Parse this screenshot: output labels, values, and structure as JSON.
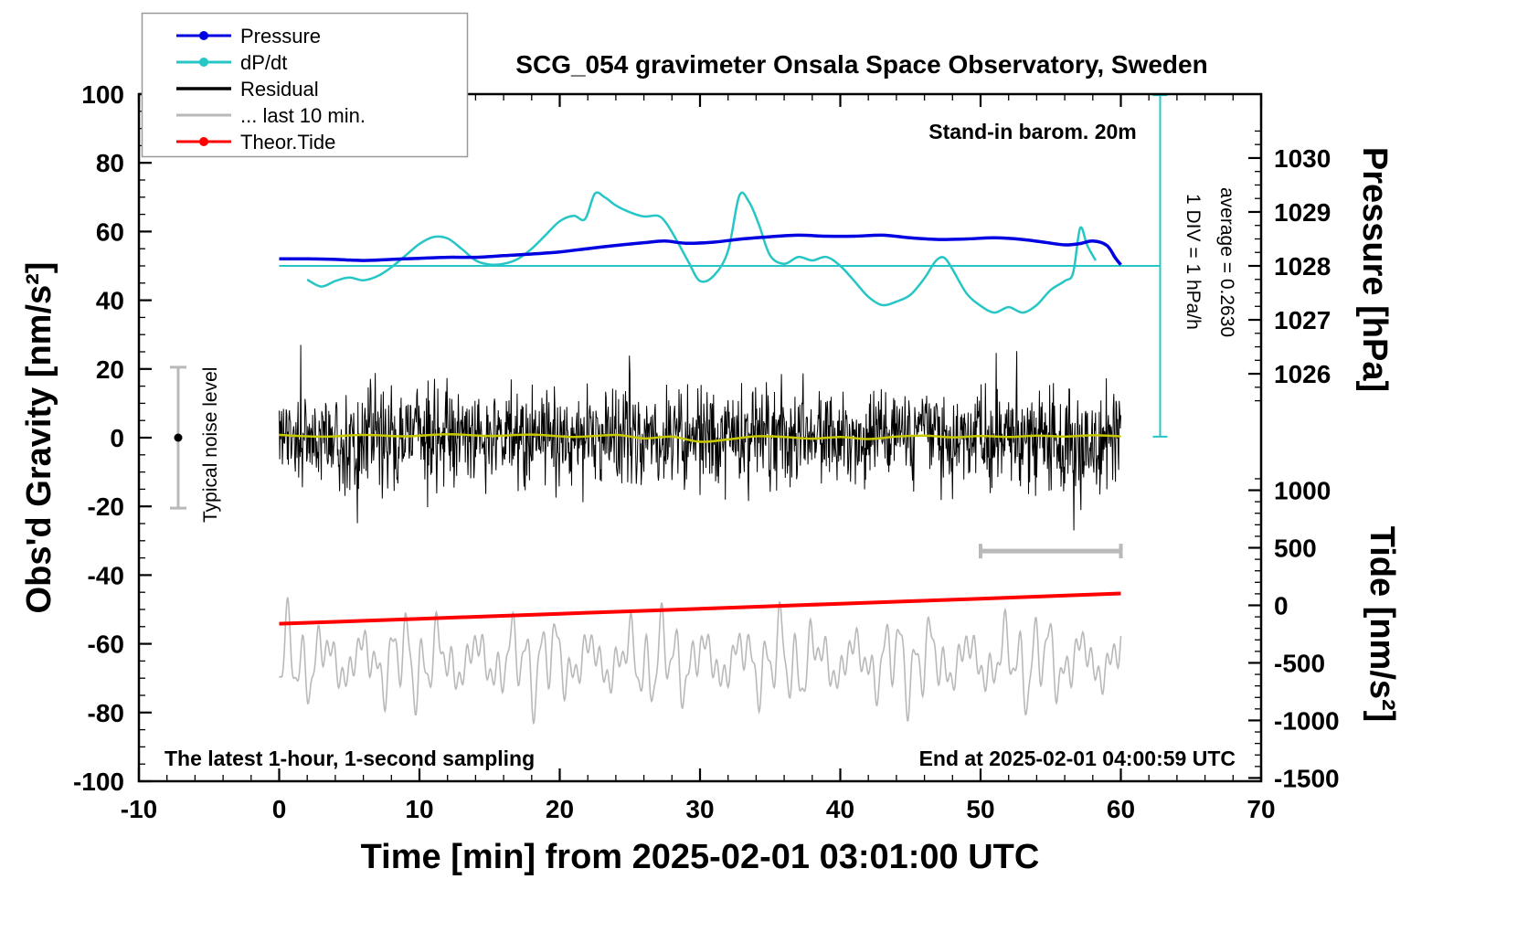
{
  "chart_data": {
    "type": "line",
    "title": "SCG_054 gravimeter Onsala Space Observatory, Sweden",
    "annotations": {
      "barometer": "Stand-in barom. 20m",
      "div_scale": "1 DIV = 1 hPa/h",
      "average": "average = 0.2630",
      "noise_level": "Typical noise level",
      "sampling": "The latest 1-hour, 1-second sampling",
      "end_time": "End at 2025-02-01 04:00:59 UTC"
    },
    "x_axis": {
      "label": "Time [min] from 2025-02-01 03:01:00 UTC",
      "min": -10,
      "max": 70,
      "major_ticks": [
        -10,
        0,
        10,
        20,
        30,
        40,
        50,
        60,
        70
      ],
      "minor_step": 2
    },
    "y_left": {
      "label": "Obs'd Gravity [nm/s²]",
      "min": -100,
      "max": 100,
      "major_ticks": [
        -100,
        -80,
        -60,
        -40,
        -20,
        0,
        20,
        40,
        60,
        80,
        100
      ],
      "minor_step": 5
    },
    "y_right_pressure": {
      "label": "Pressure [hPa]",
      "major_ticks": [
        1030,
        1029,
        1028,
        1027,
        1026
      ],
      "minor_step": 0.25,
      "tick_range_hpa": [
        1025.5,
        1030.5
      ],
      "ref_hpa": 1028,
      "gravity_at_ref": 50,
      "gravity_per_hpa": 15.7
    },
    "y_right_tide": {
      "label": "Tide [nm/s²]",
      "major_ticks": [
        1000,
        500,
        0,
        -500,
        -1000,
        -1500
      ],
      "minor_step": 100,
      "tick_range": [
        -1500,
        1100
      ],
      "gravity_at_zero": -48.8,
      "gravity_per_unit": 0.0335
    },
    "legend": {
      "items": [
        {
          "label": "Pressure",
          "color": "#0000e0",
          "marker": "dot"
        },
        {
          "label": "dP/dt",
          "color": "#26c6c6",
          "marker": "dot"
        },
        {
          "label": "Residual",
          "color": "#000000",
          "marker": "line"
        },
        {
          "label": "... last 10 min.",
          "color": "#b9b9b9",
          "marker": "line"
        },
        {
          "label": "Theor.Tide",
          "color": "#ff0000",
          "marker": "dot"
        }
      ]
    },
    "series": {
      "pressure": {
        "name": "Pressure",
        "unit": "hPa",
        "color": "#0000e0",
        "points": [
          [
            0,
            1028.13
          ],
          [
            2,
            1028.13
          ],
          [
            4,
            1028.12
          ],
          [
            6,
            1028.1
          ],
          [
            8,
            1028.12
          ],
          [
            10,
            1028.14
          ],
          [
            12,
            1028.16
          ],
          [
            14,
            1028.16
          ],
          [
            16,
            1028.19
          ],
          [
            18,
            1028.22
          ],
          [
            20,
            1028.26
          ],
          [
            22,
            1028.32
          ],
          [
            24,
            1028.38
          ],
          [
            26,
            1028.43
          ],
          [
            27.5,
            1028.46
          ],
          [
            29,
            1028.42
          ],
          [
            31,
            1028.44
          ],
          [
            33,
            1028.5
          ],
          [
            35,
            1028.54
          ],
          [
            37,
            1028.57
          ],
          [
            39,
            1028.55
          ],
          [
            41,
            1028.55
          ],
          [
            43,
            1028.57
          ],
          [
            45,
            1028.52
          ],
          [
            47,
            1028.49
          ],
          [
            49,
            1028.5
          ],
          [
            51,
            1028.52
          ],
          [
            53,
            1028.49
          ],
          [
            54.5,
            1028.44
          ],
          [
            56,
            1028.39
          ],
          [
            57,
            1028.41
          ],
          [
            58,
            1028.46
          ],
          [
            59,
            1028.38
          ],
          [
            59.6,
            1028.15
          ],
          [
            60,
            1028.02
          ]
        ]
      },
      "dpdt": {
        "name": "dP/dt",
        "unit": "hPa/h",
        "color": "#26c6c6",
        "zero_gravity": 50,
        "gravity_per_unit": 20,
        "mean": 0.263,
        "points": [
          [
            2,
            -0.2
          ],
          [
            3,
            -0.3
          ],
          [
            4,
            -0.22
          ],
          [
            5,
            -0.17
          ],
          [
            6,
            -0.21
          ],
          [
            7,
            -0.15
          ],
          [
            8,
            -0.02
          ],
          [
            9,
            0.15
          ],
          [
            10,
            0.32
          ],
          [
            11,
            0.42
          ],
          [
            12,
            0.4
          ],
          [
            13,
            0.25
          ],
          [
            14,
            0.08
          ],
          [
            15,
            0.02
          ],
          [
            16,
            0.03
          ],
          [
            17,
            0.1
          ],
          [
            18,
            0.25
          ],
          [
            19,
            0.45
          ],
          [
            20,
            0.65
          ],
          [
            21,
            0.73
          ],
          [
            21.8,
            0.68
          ],
          [
            22.5,
            1.05
          ],
          [
            23.2,
            1.0
          ],
          [
            24,
            0.88
          ],
          [
            25,
            0.78
          ],
          [
            26,
            0.72
          ],
          [
            27,
            0.73
          ],
          [
            27.6,
            0.62
          ],
          [
            28.4,
            0.35
          ],
          [
            29.2,
            0.05
          ],
          [
            30,
            -0.22
          ],
          [
            31,
            -0.14
          ],
          [
            32,
            0.22
          ],
          [
            32.8,
            1.02
          ],
          [
            33.5,
            0.93
          ],
          [
            34.2,
            0.6
          ],
          [
            35,
            0.15
          ],
          [
            36,
            0.03
          ],
          [
            37,
            0.13
          ],
          [
            38,
            0.08
          ],
          [
            39,
            0.13
          ],
          [
            40,
            0.0
          ],
          [
            41,
            -0.22
          ],
          [
            42,
            -0.45
          ],
          [
            43,
            -0.57
          ],
          [
            44,
            -0.52
          ],
          [
            45,
            -0.42
          ],
          [
            46,
            -0.18
          ],
          [
            46.8,
            0.07
          ],
          [
            47.4,
            0.12
          ],
          [
            48,
            -0.05
          ],
          [
            49,
            -0.4
          ],
          [
            50,
            -0.58
          ],
          [
            51,
            -0.68
          ],
          [
            52,
            -0.6
          ],
          [
            53,
            -0.68
          ],
          [
            54,
            -0.57
          ],
          [
            55,
            -0.35
          ],
          [
            56,
            -0.22
          ],
          [
            56.6,
            -0.1
          ],
          [
            57.1,
            0.55
          ],
          [
            57.6,
            0.3
          ],
          [
            58.2,
            0.08
          ]
        ]
      },
      "residual": {
        "name": "Residual",
        "unit": "nm/s²",
        "color": "#000000",
        "noise": {
          "x_min": 0,
          "x_max": 60,
          "points_per_min": 26,
          "sigma": 7,
          "spike_prob": 0.04,
          "spike_scale": 1.9,
          "clamp": 27,
          "seed": 1234
        }
      },
      "residual_mean": {
        "name": "Residual smoothed",
        "unit": "nm/s²",
        "color": "#c8c800",
        "points": [
          [
            0,
            0.8
          ],
          [
            3,
            0.3
          ],
          [
            6,
            0.8
          ],
          [
            9,
            0.4
          ],
          [
            12,
            1.0
          ],
          [
            15,
            0.5
          ],
          [
            18,
            0.9
          ],
          [
            21,
            0.2
          ],
          [
            24,
            0.8
          ],
          [
            26,
            -0.2
          ],
          [
            28,
            0.3
          ],
          [
            30,
            -1.2
          ],
          [
            32,
            -0.5
          ],
          [
            34,
            0.4
          ],
          [
            36,
            0.2
          ],
          [
            38,
            -0.3
          ],
          [
            40,
            0.2
          ],
          [
            42,
            -0.4
          ],
          [
            44,
            0.3
          ],
          [
            46,
            0.6
          ],
          [
            48,
            0.1
          ],
          [
            50,
            0.5
          ],
          [
            52,
            0.2
          ],
          [
            54,
            0.6
          ],
          [
            56,
            0.3
          ],
          [
            58,
            0.7
          ],
          [
            60,
            0.4
          ]
        ]
      },
      "last10": {
        "name": "... last 10 min.",
        "unit": "nm/s²",
        "color": "#b9b9b9",
        "osc": {
          "x_min": 0,
          "x_max": 60,
          "points_per_min": 24,
          "base": -65,
          "a1": 10,
          "f1": 5.9,
          "a2": 5,
          "f2": 2.33,
          "a3": 3.5,
          "f3": 11.3,
          "env_amp": 0.45,
          "env_f": 0.71,
          "clamp_min": -86,
          "clamp_max": -42,
          "seed": 777
        }
      },
      "tide": {
        "name": "Theor.Tide",
        "unit": "nm/s² (tide axis)",
        "color": "#ff0000",
        "points": [
          [
            0,
            -160
          ],
          [
            10,
            -117
          ],
          [
            20,
            -73
          ],
          [
            30,
            -30
          ],
          [
            40,
            14
          ],
          [
            50,
            58
          ],
          [
            60,
            103
          ]
        ]
      }
    },
    "markers": {
      "dpdt_zero_line": {
        "gravity": 50,
        "t_start": 0,
        "t_end": 62.8
      },
      "dpdt_scale_bar": {
        "t": 62.8,
        "g_start": 0.3,
        "g_end": 99.7
      },
      "noise_bar": {
        "t": -7.2,
        "g_min": -20.5,
        "g_max": 20.5,
        "dot_g": 0,
        "color": "#b9b9b9",
        "dot_color": "#000000"
      },
      "duration_bar": {
        "t_start": 50,
        "t_end": 60,
        "gravity": -33,
        "color": "#b9b9b9"
      }
    }
  }
}
